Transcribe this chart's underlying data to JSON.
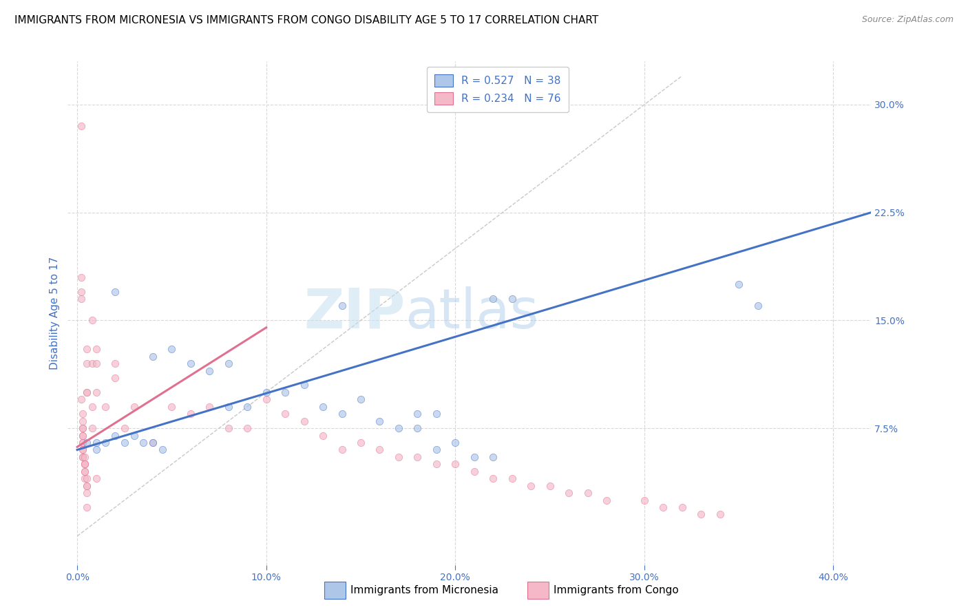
{
  "title": "IMMIGRANTS FROM MICRONESIA VS IMMIGRANTS FROM CONGO DISABILITY AGE 5 TO 17 CORRELATION CHART",
  "source": "Source: ZipAtlas.com",
  "xlabel_ticks": [
    "0.0%",
    "10.0%",
    "20.0%",
    "30.0%",
    "40.0%"
  ],
  "xlabel_tick_vals": [
    0.0,
    0.1,
    0.2,
    0.3,
    0.4
  ],
  "ylabel": "Disability Age 5 to 17",
  "ylabel_ticks": [
    "30.0%",
    "22.5%",
    "15.0%",
    "7.5%"
  ],
  "ylabel_tick_vals": [
    0.3,
    0.225,
    0.15,
    0.075
  ],
  "xlim": [
    -0.005,
    0.42
  ],
  "ylim": [
    -0.02,
    0.33
  ],
  "watermark_line1": "ZIP",
  "watermark_line2": "atlas",
  "legend_items": [
    {
      "label_r": "R = 0.527",
      "label_n": "N = 38",
      "color": "#aec6e8",
      "border": "#4472c4"
    },
    {
      "label_r": "R = 0.234",
      "label_n": "N = 76",
      "color": "#f4b8c8",
      "border": "#e07090"
    }
  ],
  "blue_scatter_x": [
    0.005,
    0.01,
    0.01,
    0.015,
    0.02,
    0.02,
    0.025,
    0.03,
    0.035,
    0.04,
    0.04,
    0.045,
    0.05,
    0.06,
    0.07,
    0.08,
    0.08,
    0.09,
    0.1,
    0.11,
    0.12,
    0.13,
    0.14,
    0.14,
    0.15,
    0.16,
    0.17,
    0.18,
    0.18,
    0.19,
    0.19,
    0.2,
    0.21,
    0.22,
    0.22,
    0.23,
    0.35,
    0.36
  ],
  "blue_scatter_y": [
    0.065,
    0.065,
    0.06,
    0.065,
    0.07,
    0.17,
    0.065,
    0.07,
    0.065,
    0.065,
    0.125,
    0.06,
    0.13,
    0.12,
    0.115,
    0.12,
    0.09,
    0.09,
    0.1,
    0.1,
    0.105,
    0.09,
    0.085,
    0.16,
    0.095,
    0.08,
    0.075,
    0.075,
    0.085,
    0.06,
    0.085,
    0.065,
    0.055,
    0.055,
    0.165,
    0.165,
    0.175,
    0.16
  ],
  "pink_scatter_x": [
    0.002,
    0.002,
    0.002,
    0.002,
    0.002,
    0.003,
    0.003,
    0.003,
    0.003,
    0.003,
    0.003,
    0.003,
    0.003,
    0.003,
    0.003,
    0.003,
    0.003,
    0.004,
    0.004,
    0.004,
    0.004,
    0.004,
    0.004,
    0.004,
    0.005,
    0.005,
    0.005,
    0.005,
    0.005,
    0.005,
    0.005,
    0.005,
    0.005,
    0.008,
    0.008,
    0.008,
    0.008,
    0.01,
    0.01,
    0.01,
    0.01,
    0.015,
    0.02,
    0.02,
    0.025,
    0.03,
    0.04,
    0.05,
    0.06,
    0.07,
    0.08,
    0.09,
    0.1,
    0.11,
    0.12,
    0.13,
    0.14,
    0.15,
    0.16,
    0.17,
    0.18,
    0.19,
    0.2,
    0.21,
    0.22,
    0.23,
    0.24,
    0.25,
    0.26,
    0.27,
    0.28,
    0.3,
    0.31,
    0.32,
    0.33,
    0.34
  ],
  "pink_scatter_y": [
    0.285,
    0.18,
    0.17,
    0.165,
    0.095,
    0.085,
    0.08,
    0.075,
    0.075,
    0.07,
    0.07,
    0.065,
    0.065,
    0.06,
    0.06,
    0.055,
    0.055,
    0.055,
    0.05,
    0.05,
    0.05,
    0.045,
    0.045,
    0.04,
    0.13,
    0.12,
    0.1,
    0.1,
    0.04,
    0.035,
    0.035,
    0.03,
    0.02,
    0.15,
    0.12,
    0.09,
    0.075,
    0.13,
    0.12,
    0.1,
    0.04,
    0.09,
    0.12,
    0.11,
    0.075,
    0.09,
    0.065,
    0.09,
    0.085,
    0.09,
    0.075,
    0.075,
    0.095,
    0.085,
    0.08,
    0.07,
    0.06,
    0.065,
    0.06,
    0.055,
    0.055,
    0.05,
    0.05,
    0.045,
    0.04,
    0.04,
    0.035,
    0.035,
    0.03,
    0.03,
    0.025,
    0.025,
    0.02,
    0.02,
    0.015,
    0.015
  ],
  "blue_line_x": [
    0.0,
    0.42
  ],
  "blue_line_y": [
    0.06,
    0.225
  ],
  "pink_line_x": [
    0.0,
    0.1
  ],
  "pink_line_y": [
    0.062,
    0.145
  ],
  "diagonal_line_x": [
    0.0,
    0.32
  ],
  "diagonal_line_y": [
    0.0,
    0.32
  ],
  "scatter_alpha": 0.65,
  "scatter_size": 55,
  "blue_color": "#aec6e8",
  "blue_line_color": "#4472c4",
  "pink_color": "#f4b8c8",
  "pink_line_color": "#e07090",
  "diagonal_color": "#c8c8c8",
  "grid_color": "#d8d8d8",
  "title_fontsize": 11,
  "axis_label_color": "#4472c4",
  "tick_label_color": "#4472c4"
}
